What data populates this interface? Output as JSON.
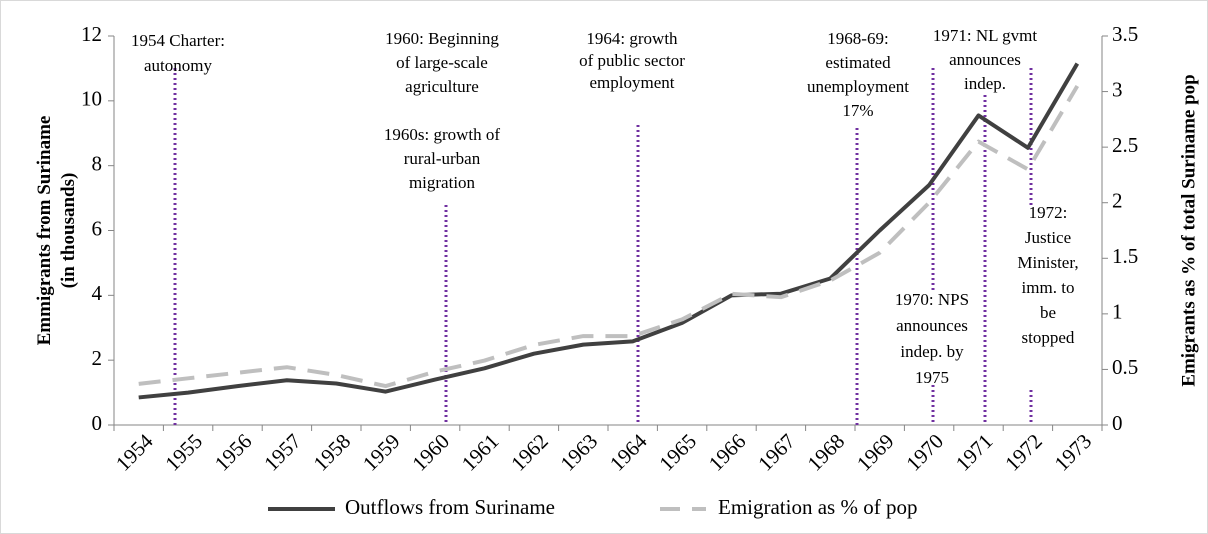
{
  "chart_data": {
    "type": "line",
    "categories": [
      "1954",
      "1955",
      "1956",
      "1957",
      "1958",
      "1959",
      "1960",
      "1961",
      "1962",
      "1963",
      "1964",
      "1965",
      "1966",
      "1967",
      "1968",
      "1969",
      "1970",
      "1971",
      "1972",
      "1973"
    ],
    "series": [
      {
        "name": "Outflows from Suriname",
        "color": "#404040",
        "dash": false,
        "values": [
          0.85,
          1.0,
          1.2,
          1.38,
          1.28,
          1.03,
          1.4,
          1.75,
          2.2,
          2.48,
          2.58,
          3.15,
          4.0,
          4.05,
          4.52,
          6.0,
          7.4,
          9.55,
          8.55,
          11.15
        ]
      },
      {
        "name": "Emigration as % of pop",
        "color": "#bfbfbf",
        "dash": true,
        "axis": "y2",
        "values": [
          0.37,
          0.42,
          0.47,
          0.52,
          0.45,
          0.35,
          0.48,
          0.58,
          0.72,
          0.8,
          0.8,
          0.95,
          1.18,
          1.15,
          1.3,
          1.55,
          2.0,
          2.55,
          2.3,
          3.05
        ]
      }
    ],
    "ylabel": [
      "Emmigrants from Suriname",
      "(in thousands)"
    ],
    "y2label": "Emigrants as % of total Suriname pop",
    "ylim": [
      0,
      12
    ],
    "yticks": [
      0,
      2,
      4,
      6,
      8,
      10,
      12
    ],
    "y2lim": [
      0,
      3.5
    ],
    "y2ticks": [
      0,
      0.5,
      1,
      1.5,
      2,
      2.5,
      3,
      3.5
    ],
    "grid": false,
    "legend": "bottom",
    "annotation_color": "#7030a0",
    "annotations": [
      {
        "lines": [
          "1954 Charter:",
          "autonomy"
        ]
      },
      {
        "lines": [
          "1960: Beginning",
          "of large-scale",
          "agriculture"
        ]
      },
      {
        "lines": [
          "1960s: growth of",
          "rural-urban",
          "migration"
        ]
      },
      {
        "lines": [
          "1964: growth",
          "of public sector",
          "employment"
        ]
      },
      {
        "lines": [
          "1968-69:",
          "estimated",
          "unemployment",
          "17%"
        ]
      },
      {
        "lines": [
          "1971: NL gvmt",
          "announces",
          "indep."
        ]
      },
      {
        "lines": [
          "1970: NPS",
          "announces",
          "indep. by",
          "1975"
        ]
      },
      {
        "lines": [
          "1972:",
          "Justice",
          "Minister,",
          "imm. to",
          "be",
          "stopped"
        ]
      }
    ]
  }
}
